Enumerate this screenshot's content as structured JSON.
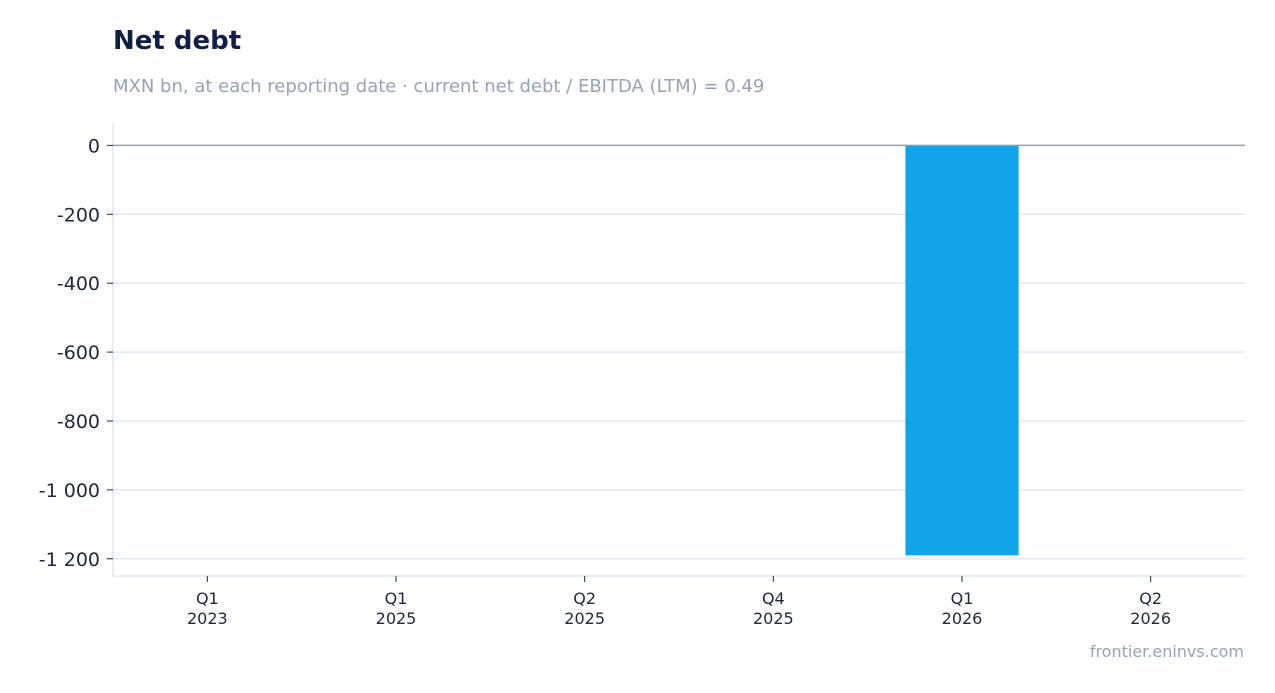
{
  "header": {
    "title": "Net debt",
    "subtitle": "MXN bn, at each reporting date · current net debt / EBITDA (LTM) = 0.49"
  },
  "footer": {
    "source": "frontier.eninvs.com"
  },
  "colors": {
    "bar": "#10a5e6",
    "zero_line": "#94a3b8",
    "grid": "#e2e8f0",
    "axis": "#e2e8f0"
  },
  "chart_data": {
    "type": "bar",
    "title": "Net debt",
    "subtitle": "MXN bn, at each reporting date · current net debt / EBITDA (LTM) = 0.49",
    "categories": [
      "Q1\n2023",
      "Q1\n2025",
      "Q2\n2025",
      "Q4\n2025",
      "Q1\n2026",
      "Q2\n2026"
    ],
    "values": [
      0,
      0,
      0,
      0,
      -1190,
      0
    ],
    "ylim": [
      -1250,
      65
    ],
    "yticks": [
      0,
      -200,
      -400,
      -600,
      -800,
      -1000,
      -1200
    ],
    "ytick_labels": [
      "0",
      "-200",
      "-400",
      "-600",
      "-800",
      "-1 000",
      "-1 200"
    ],
    "grid": true,
    "legend": "none"
  }
}
